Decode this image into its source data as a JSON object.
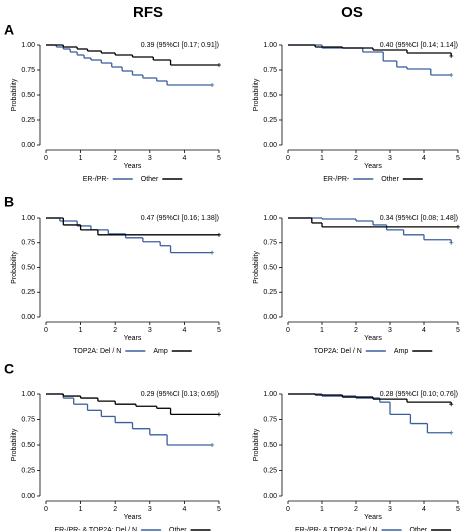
{
  "column_titles": [
    "RFS",
    "OS"
  ],
  "panel_labels": [
    "A",
    "B",
    "C"
  ],
  "chart_data": [
    {
      "type": "step",
      "annotation": "0.39 (95%CI [0.17; 0.91])",
      "x_label": "Years",
      "y_label": "Probability",
      "xlim": [
        0,
        5
      ],
      "ylim": [
        0,
        1
      ],
      "xticks": [
        0,
        1,
        2,
        3,
        4,
        5
      ],
      "yticks": [
        {
          "value": 0,
          "label": "0.00"
        },
        {
          "value": 0.25,
          "label": "0.25"
        },
        {
          "value": 0.5,
          "label": "0.50"
        },
        {
          "value": 0.75,
          "label": "0.75"
        },
        {
          "value": 1,
          "label": "1.00"
        }
      ],
      "series": [
        {
          "name": "ER-/PR-",
          "color": "#3b5f9e",
          "x": [
            0,
            0.3,
            0.5,
            0.7,
            0.9,
            1.1,
            1.3,
            1.6,
            1.9,
            2.2,
            2.5,
            2.8,
            3.2,
            3.5,
            4.8
          ],
          "values": [
            1,
            0.98,
            0.96,
            0.93,
            0.9,
            0.87,
            0.85,
            0.82,
            0.78,
            0.74,
            0.7,
            0.67,
            0.64,
            0.6,
            0.6
          ]
        },
        {
          "name": "Other",
          "color": "#000000",
          "x": [
            0,
            0.5,
            0.9,
            1.2,
            1.6,
            2.0,
            2.5,
            3.1,
            3.6,
            5
          ],
          "values": [
            1,
            0.98,
            0.96,
            0.94,
            0.92,
            0.9,
            0.88,
            0.85,
            0.8,
            0.8
          ]
        }
      ]
    },
    {
      "type": "step",
      "annotation": "0.40 (95%CI [0.14; 1.14])",
      "x_label": "Years",
      "y_label": "Probability",
      "xlim": [
        0,
        5
      ],
      "ylim": [
        0,
        1
      ],
      "xticks": [
        0,
        1,
        2,
        3,
        4,
        5
      ],
      "yticks": [
        {
          "value": 0,
          "label": "0.00"
        },
        {
          "value": 0.25,
          "label": "0.25"
        },
        {
          "value": 0.5,
          "label": "0.50"
        },
        {
          "value": 0.75,
          "label": "0.75"
        },
        {
          "value": 1,
          "label": "1.00"
        }
      ],
      "series": [
        {
          "name": "ER-/PR-",
          "color": "#3b5f9e",
          "x": [
            0,
            1,
            2.2,
            2.8,
            3.2,
            3.5,
            4.2,
            4.8
          ],
          "values": [
            1,
            0.97,
            0.93,
            0.84,
            0.78,
            0.76,
            0.7,
            0.7
          ]
        },
        {
          "name": "Other",
          "color": "#000000",
          "x": [
            0,
            0.8,
            1.6,
            2.5,
            3.5,
            4.8
          ],
          "values": [
            1,
            0.98,
            0.97,
            0.95,
            0.92,
            0.89
          ]
        }
      ]
    },
    {
      "type": "step",
      "annotation": "0.47 (95%CI [0.16; 1.38])",
      "x_label": "Years",
      "y_label": "Probability",
      "xlim": [
        0,
        5
      ],
      "ylim": [
        0,
        1
      ],
      "xticks": [
        0,
        1,
        2,
        3,
        4,
        5
      ],
      "yticks": [
        {
          "value": 0,
          "label": "0.00"
        },
        {
          "value": 0.25,
          "label": "0.25"
        },
        {
          "value": 0.5,
          "label": "0.50"
        },
        {
          "value": 0.75,
          "label": "0.75"
        },
        {
          "value": 1,
          "label": "1.00"
        }
      ],
      "series": [
        {
          "name": "TOP2A: Del / N",
          "color": "#3b5f9e",
          "x": [
            0,
            0.4,
            0.9,
            1.3,
            1.8,
            2.3,
            2.8,
            3.3,
            3.6,
            4.8
          ],
          "values": [
            1,
            0.97,
            0.92,
            0.88,
            0.84,
            0.8,
            0.76,
            0.72,
            0.65,
            0.65
          ]
        },
        {
          "name": "Amp",
          "color": "#000000",
          "x": [
            0,
            0.5,
            1.0,
            1.5,
            5
          ],
          "values": [
            1,
            0.93,
            0.88,
            0.83,
            0.83
          ]
        }
      ]
    },
    {
      "type": "step",
      "annotation": "0.34 (95%CI [0.08; 1.48])",
      "x_label": "Years",
      "y_label": "Probability",
      "xlim": [
        0,
        5
      ],
      "ylim": [
        0,
        1
      ],
      "xticks": [
        0,
        1,
        2,
        3,
        4,
        5
      ],
      "yticks": [
        {
          "value": 0,
          "label": "0.00"
        },
        {
          "value": 0.25,
          "label": "0.25"
        },
        {
          "value": 0.5,
          "label": "0.50"
        },
        {
          "value": 0.75,
          "label": "0.75"
        },
        {
          "value": 1,
          "label": "1.00"
        }
      ],
      "series": [
        {
          "name": "TOP2A: Del / N",
          "color": "#3b5f9e",
          "x": [
            0,
            1,
            2,
            2.5,
            2.9,
            3.4,
            4,
            4.8
          ],
          "values": [
            1,
            0.99,
            0.97,
            0.93,
            0.88,
            0.83,
            0.78,
            0.75
          ]
        },
        {
          "name": "Amp",
          "color": "#000000",
          "x": [
            0,
            0.7,
            1.0,
            5
          ],
          "values": [
            1,
            0.95,
            0.91,
            0.91
          ]
        }
      ]
    },
    {
      "type": "step",
      "annotation": "0.29 (95%CI [0.13; 0.65])",
      "x_label": "Years",
      "y_label": "Probability",
      "xlim": [
        0,
        5
      ],
      "ylim": [
        0,
        1
      ],
      "xticks": [
        0,
        1,
        2,
        3,
        4,
        5
      ],
      "yticks": [
        {
          "value": 0,
          "label": "0.00"
        },
        {
          "value": 0.25,
          "label": "0.25"
        },
        {
          "value": 0.5,
          "label": "0.50"
        },
        {
          "value": 0.75,
          "label": "0.75"
        },
        {
          "value": 1,
          "label": "1.00"
        }
      ],
      "series": [
        {
          "name": "ER-/PR- & TOP2A: Del / N",
          "color": "#3b5f9e",
          "x": [
            0,
            0.5,
            0.8,
            1.2,
            1.6,
            2.0,
            2.5,
            3.0,
            3.5,
            4.8
          ],
          "values": [
            1,
            0.96,
            0.9,
            0.84,
            0.78,
            0.72,
            0.66,
            0.6,
            0.5,
            0.5
          ]
        },
        {
          "name": "Other",
          "color": "#000000",
          "x": [
            0,
            0.5,
            1,
            1.5,
            2,
            2.6,
            3.2,
            3.6,
            5
          ],
          "values": [
            1,
            0.98,
            0.96,
            0.93,
            0.9,
            0.88,
            0.86,
            0.8,
            0.8
          ]
        }
      ]
    },
    {
      "type": "step",
      "annotation": "0.28 (95%CI [0.10; 0.76])",
      "x_label": "Years",
      "y_label": "Probability",
      "xlim": [
        0,
        5
      ],
      "ylim": [
        0,
        1
      ],
      "xticks": [
        0,
        1,
        2,
        3,
        4,
        5
      ],
      "yticks": [
        {
          "value": 0,
          "label": "0.00"
        },
        {
          "value": 0.25,
          "label": "0.25"
        },
        {
          "value": 0.5,
          "label": "0.50"
        },
        {
          "value": 0.75,
          "label": "0.75"
        },
        {
          "value": 1,
          "label": "1.00"
        }
      ],
      "series": [
        {
          "name": "ER-/PR- & TOP2A: Del / N",
          "color": "#3b5f9e",
          "x": [
            0,
            1,
            2,
            2.7,
            3,
            3.6,
            4.1,
            4.8
          ],
          "values": [
            1,
            0.98,
            0.96,
            0.92,
            0.8,
            0.71,
            0.62,
            0.62
          ]
        },
        {
          "name": "Other",
          "color": "#000000",
          "x": [
            0,
            0.8,
            1.6,
            2.5,
            3.5,
            4.8
          ],
          "values": [
            1,
            0.99,
            0.97,
            0.95,
            0.92,
            0.9
          ]
        }
      ]
    }
  ]
}
